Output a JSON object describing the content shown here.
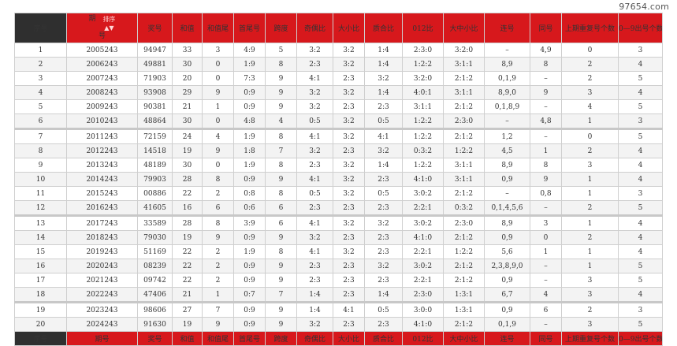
{
  "watermark": "97654.com",
  "header": {
    "index": "序号",
    "period_main": "期",
    "period_sub": "号",
    "sort_label": "排序",
    "sort_icon": "▲▼",
    "prize": "奖号",
    "sum": "和值",
    "sum_tail": "和值尾",
    "first_last": "首尾号",
    "span": "跨度",
    "odd_even": "奇偶比",
    "big_small": "大小比",
    "prime_comp": "质合比",
    "ratio012": "012比",
    "big_mid_small": "大中小比",
    "consecutive": "连号",
    "same": "同号",
    "repeat_count": "上期重复号个数",
    "digits_count": "0—9出号个数"
  },
  "footer": {
    "index": "序号",
    "period": "期号",
    "prize": "奖号",
    "sum": "和值",
    "sum_tail": "和值尾",
    "first_last": "首尾号",
    "span": "跨度",
    "odd_even": "奇偶比",
    "big_small": "大小比",
    "prime_comp": "质合比",
    "ratio012": "012比",
    "big_mid_small": "大中小比",
    "consecutive": "连号",
    "same": "同号",
    "repeat_count": "上期重复号个数",
    "digits_count": "0—9出号个数"
  },
  "rows": [
    [
      "1",
      "2005243",
      "94947",
      "33",
      "3",
      "4:9",
      "5",
      "3:2",
      "3:2",
      "1:4",
      "2:3:0",
      "3:2:0",
      "–",
      "4,9",
      "0",
      "3"
    ],
    [
      "2",
      "2006243",
      "49881",
      "30",
      "0",
      "1:9",
      "8",
      "2:3",
      "3:2",
      "1:4",
      "1:2:2",
      "3:1:1",
      "8,9",
      "8",
      "2",
      "4"
    ],
    [
      "3",
      "2007243",
      "71903",
      "20",
      "0",
      "7:3",
      "9",
      "4:1",
      "2:3",
      "3:2",
      "3:2:0",
      "2:1:2",
      "0,1,9",
      "–",
      "2",
      "5"
    ],
    [
      "4",
      "2008243",
      "93908",
      "29",
      "9",
      "0:9",
      "9",
      "3:2",
      "3:2",
      "1:4",
      "4:0:1",
      "3:1:1",
      "8,9,0",
      "9",
      "3",
      "4"
    ],
    [
      "5",
      "2009243",
      "90381",
      "21",
      "1",
      "0:9",
      "9",
      "3:2",
      "2:3",
      "2:3",
      "3:1:1",
      "2:1:2",
      "0,1,8,9",
      "–",
      "4",
      "5"
    ],
    [
      "6",
      "2010243",
      "48864",
      "30",
      "0",
      "4:8",
      "4",
      "0:5",
      "3:2",
      "0:5",
      "1:2:2",
      "2:3:0",
      "–",
      "4,8",
      "1",
      "3"
    ],
    [
      "7",
      "2011243",
      "72159",
      "24",
      "4",
      "1:9",
      "8",
      "4:1",
      "3:2",
      "4:1",
      "1:2:2",
      "2:1:2",
      "1,2",
      "–",
      "0",
      "5"
    ],
    [
      "8",
      "2012243",
      "14518",
      "19",
      "9",
      "1:8",
      "7",
      "3:2",
      "2:3",
      "3:2",
      "0:3:2",
      "1:2:2",
      "4,5",
      "1",
      "2",
      "4"
    ],
    [
      "9",
      "2013243",
      "48189",
      "30",
      "0",
      "1:9",
      "8",
      "2:3",
      "3:2",
      "1:4",
      "1:2:2",
      "3:1:1",
      "8,9",
      "8",
      "3",
      "4"
    ],
    [
      "10",
      "2014243",
      "79903",
      "28",
      "8",
      "0:9",
      "9",
      "4:1",
      "3:2",
      "2:3",
      "4:1:0",
      "3:1:1",
      "0,9",
      "9",
      "1",
      "4"
    ],
    [
      "11",
      "2015243",
      "00886",
      "22",
      "2",
      "0:8",
      "8",
      "0:5",
      "3:2",
      "0:5",
      "3:0:2",
      "2:1:2",
      "–",
      "0,8",
      "1",
      "3"
    ],
    [
      "12",
      "2016243",
      "41605",
      "16",
      "6",
      "0:6",
      "6",
      "2:3",
      "2:3",
      "2:3",
      "2:2:1",
      "0:3:2",
      "0,1,4,5,6",
      "–",
      "2",
      "5"
    ],
    [
      "13",
      "2017243",
      "33589",
      "28",
      "8",
      "3:9",
      "6",
      "4:1",
      "3:2",
      "3:2",
      "3:0:2",
      "2:3:0",
      "8,9",
      "3",
      "1",
      "4"
    ],
    [
      "14",
      "2018243",
      "79030",
      "19",
      "9",
      "0:9",
      "9",
      "3:2",
      "2:3",
      "2:3",
      "4:1:0",
      "2:1:2",
      "0,9",
      "0",
      "2",
      "4"
    ],
    [
      "15",
      "2019243",
      "51169",
      "22",
      "2",
      "1:9",
      "8",
      "4:1",
      "3:2",
      "2:3",
      "2:2:1",
      "1:2:2",
      "5,6",
      "1",
      "1",
      "4"
    ],
    [
      "16",
      "2020243",
      "08239",
      "22",
      "2",
      "0:9",
      "9",
      "2:3",
      "2:3",
      "3:2",
      "3:0:2",
      "2:1:2",
      "2,3,8,9,0",
      "–",
      "1",
      "5"
    ],
    [
      "17",
      "2021243",
      "09742",
      "22",
      "2",
      "0:9",
      "9",
      "2:3",
      "2:3",
      "2:3",
      "2:2:1",
      "2:1:2",
      "0,9",
      "–",
      "3",
      "5"
    ],
    [
      "18",
      "2022243",
      "47406",
      "21",
      "1",
      "0:7",
      "7",
      "1:4",
      "2:3",
      "1:4",
      "2:3:0",
      "1:3:1",
      "6,7",
      "4",
      "3",
      "4"
    ],
    [
      "19",
      "2023243",
      "98606",
      "27",
      "7",
      "0:9",
      "9",
      "1:4",
      "4:1",
      "0:5",
      "3:0:0",
      "1:3:1",
      "0,9",
      "6",
      "2",
      "3"
    ],
    [
      "20",
      "2024243",
      "91630",
      "19",
      "9",
      "0:9",
      "9",
      "3:2",
      "2:3",
      "2:3",
      "4:1:0",
      "2:1:2",
      "0,1,9",
      "–",
      "3",
      "5"
    ]
  ]
}
